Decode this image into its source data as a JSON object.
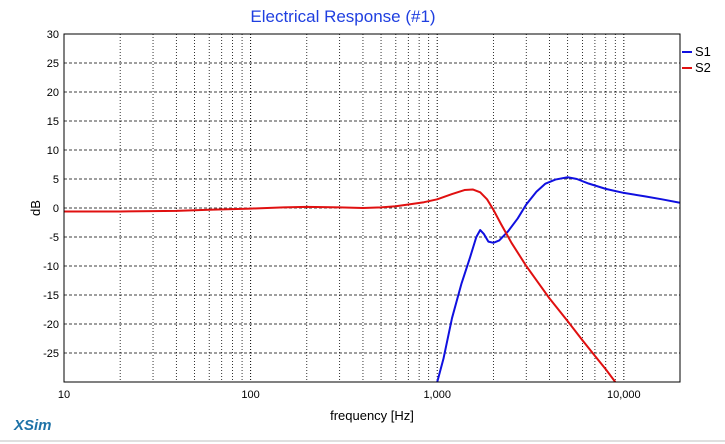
{
  "app": {
    "brand": "XSim",
    "colors": {
      "title": "#1f3fe0",
      "brand": "#1f73a8",
      "frame_bottom": "#bfbfbf"
    }
  },
  "chart_data": {
    "type": "line",
    "title": "Electrical Response (#1)",
    "xlabel": "frequency [Hz]",
    "ylabel": "dB",
    "xscale": "log",
    "xlim": [
      10,
      20000
    ],
    "ylim": [
      -30,
      30
    ],
    "x_tick_values": [
      10,
      100,
      1000,
      10000
    ],
    "x_tick_labels": [
      "10",
      "100",
      "1,000",
      "10,000"
    ],
    "y_ticks": [
      30,
      25,
      20,
      15,
      10,
      5,
      0,
      -5,
      -10,
      -15,
      -20,
      -25
    ],
    "grid": true,
    "legend_position": "right",
    "series": [
      {
        "name": "S1",
        "color": "#1010e0",
        "points": [
          [
            1000,
            -30
          ],
          [
            1080,
            -26
          ],
          [
            1200,
            -19
          ],
          [
            1350,
            -13
          ],
          [
            1500,
            -8.5
          ],
          [
            1620,
            -5
          ],
          [
            1700,
            -3.8
          ],
          [
            1780,
            -4.5
          ],
          [
            1880,
            -5.8
          ],
          [
            2000,
            -6
          ],
          [
            2150,
            -5.6
          ],
          [
            2400,
            -4
          ],
          [
            2700,
            -1.8
          ],
          [
            3000,
            0.6
          ],
          [
            3400,
            2.8
          ],
          [
            3800,
            4.2
          ],
          [
            4300,
            4.9
          ],
          [
            5000,
            5.3
          ],
          [
            5600,
            5
          ],
          [
            6500,
            4.2
          ],
          [
            8000,
            3.3
          ],
          [
            10000,
            2.6
          ],
          [
            13000,
            2
          ],
          [
            16000,
            1.5
          ],
          [
            20000,
            0.9
          ]
        ]
      },
      {
        "name": "S2",
        "color": "#e01010",
        "points": [
          [
            10,
            -0.6
          ],
          [
            20,
            -0.6
          ],
          [
            40,
            -0.5
          ],
          [
            60,
            -0.3
          ],
          [
            100,
            -0.1
          ],
          [
            150,
            0.1
          ],
          [
            200,
            0.2
          ],
          [
            300,
            0.1
          ],
          [
            400,
            0
          ],
          [
            500,
            0.1
          ],
          [
            600,
            0.3
          ],
          [
            700,
            0.6
          ],
          [
            850,
            1
          ],
          [
            1000,
            1.5
          ],
          [
            1200,
            2.4
          ],
          [
            1400,
            3.1
          ],
          [
            1550,
            3.2
          ],
          [
            1700,
            2.7
          ],
          [
            1850,
            1.5
          ],
          [
            2000,
            -0.3
          ],
          [
            2200,
            -2.8
          ],
          [
            2500,
            -6
          ],
          [
            3000,
            -10
          ],
          [
            3500,
            -13
          ],
          [
            4000,
            -15.6
          ],
          [
            5000,
            -19.5
          ],
          [
            6000,
            -22.8
          ],
          [
            7000,
            -25.5
          ],
          [
            8000,
            -27.8
          ],
          [
            9000,
            -30
          ]
        ]
      }
    ]
  }
}
